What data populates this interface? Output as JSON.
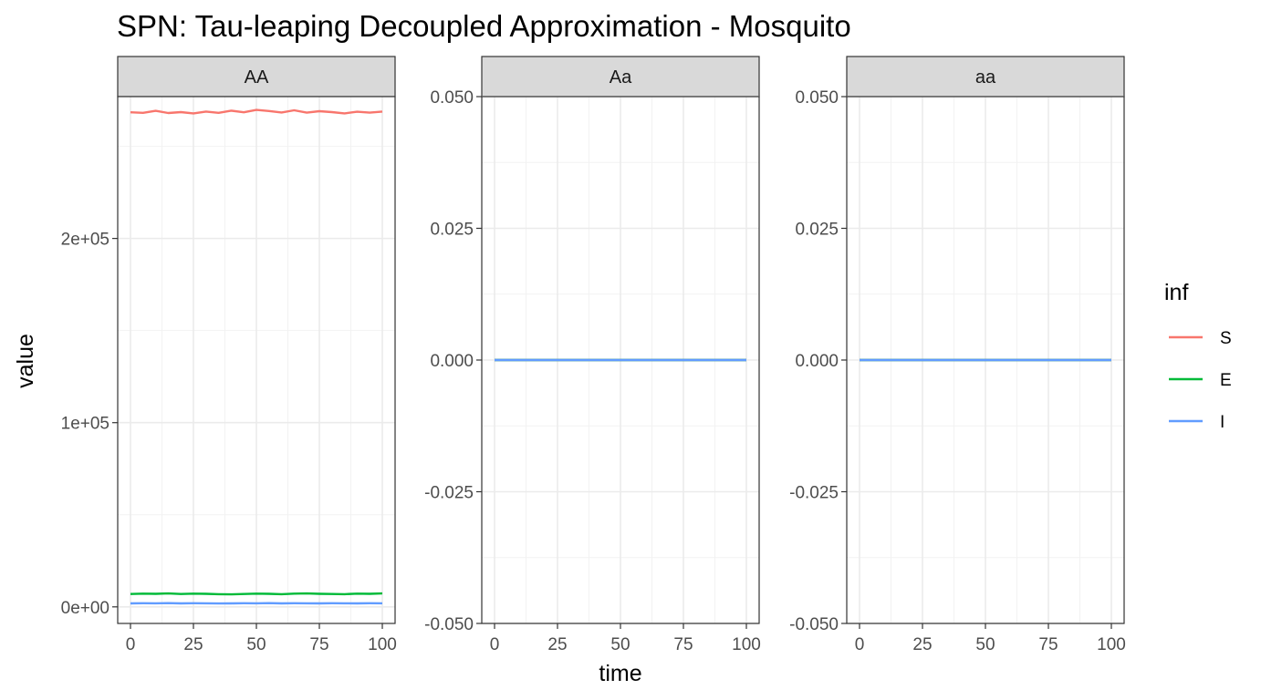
{
  "chart_data": {
    "type": "line",
    "title": "SPN: Tau-leaping Decoupled Approximation - Mosquito",
    "xlabel": "time",
    "ylabel": "value",
    "x_ticks": [
      "0",
      "25",
      "50",
      "75",
      "100"
    ],
    "xlim": [
      0,
      100
    ],
    "grid": true,
    "legend": {
      "title": "inf",
      "placement": "right",
      "entries": [
        {
          "label": "S",
          "color": "#F8766D"
        },
        {
          "label": "E",
          "color": "#00BA38"
        },
        {
          "label": "I",
          "color": "#619CFF"
        }
      ]
    },
    "panels": [
      {
        "strip": "AA",
        "ylim": [
          -9000,
          277000
        ],
        "y_ticks": [
          {
            "value": 0,
            "label": "0e+00"
          },
          {
            "value": 100000,
            "label": "1e+05"
          },
          {
            "value": 200000,
            "label": "2e+05"
          }
        ],
        "series": [
          {
            "name": "S",
            "color": "#F8766D",
            "x": [
              0,
              5,
              10,
              15,
              20,
              25,
              30,
              35,
              40,
              45,
              50,
              55,
              60,
              65,
              70,
              75,
              80,
              85,
              90,
              95,
              100
            ],
            "y": [
              268500,
              268200,
              269300,
              268100,
              268600,
              267900,
              268900,
              268200,
              269400,
              268500,
              269800,
              269200,
              268400,
              269600,
              268300,
              269100,
              268600,
              267900,
              268800,
              268300,
              268900
            ]
          },
          {
            "name": "E",
            "color": "#00BA38",
            "x": [
              0,
              5,
              10,
              15,
              20,
              25,
              30,
              35,
              40,
              45,
              50,
              55,
              60,
              65,
              70,
              75,
              80,
              85,
              90,
              95,
              100
            ],
            "y": [
              7000,
              7200,
              7100,
              7300,
              7000,
              7200,
              7100,
              6900,
              6800,
              7000,
              7200,
              7100,
              6900,
              7200,
              7300,
              7100,
              7000,
              6900,
              7200,
              7100,
              7300
            ]
          },
          {
            "name": "I",
            "color": "#619CFF",
            "x": [
              0,
              5,
              10,
              15,
              20,
              25,
              30,
              35,
              40,
              45,
              50,
              55,
              60,
              65,
              70,
              75,
              80,
              85,
              90,
              95,
              100
            ],
            "y": [
              1900,
              2000,
              1950,
              2050,
              1900,
              2000,
              1950,
              1850,
              1900,
              2000,
              1950,
              2050,
              1900,
              2000,
              1950,
              1900,
              2000,
              1950,
              1900,
              2000,
              1950
            ]
          }
        ]
      },
      {
        "strip": "Aa",
        "ylim": [
          -0.05,
          0.05
        ],
        "y_ticks": [
          {
            "value": -0.05,
            "label": "-0.050"
          },
          {
            "value": -0.025,
            "label": "-0.025"
          },
          {
            "value": 0,
            "label": "0.000"
          },
          {
            "value": 0.025,
            "label": "0.025"
          },
          {
            "value": 0.05,
            "label": "0.050"
          }
        ],
        "series": [
          {
            "name": "S",
            "color": "#F8766D",
            "x": [
              0,
              100
            ],
            "y": [
              0,
              0
            ]
          },
          {
            "name": "E",
            "color": "#00BA38",
            "x": [
              0,
              100
            ],
            "y": [
              0,
              0
            ]
          },
          {
            "name": "I",
            "color": "#619CFF",
            "x": [
              0,
              100
            ],
            "y": [
              0,
              0
            ]
          }
        ]
      },
      {
        "strip": "aa",
        "ylim": [
          -0.05,
          0.05
        ],
        "y_ticks": [
          {
            "value": -0.05,
            "label": "-0.050"
          },
          {
            "value": -0.025,
            "label": "-0.025"
          },
          {
            "value": 0,
            "label": "0.000"
          },
          {
            "value": 0.025,
            "label": "0.025"
          },
          {
            "value": 0.05,
            "label": "0.050"
          }
        ],
        "series": [
          {
            "name": "S",
            "color": "#F8766D",
            "x": [
              0,
              100
            ],
            "y": [
              0,
              0
            ]
          },
          {
            "name": "E",
            "color": "#00BA38",
            "x": [
              0,
              100
            ],
            "y": [
              0,
              0
            ]
          },
          {
            "name": "I",
            "color": "#619CFF",
            "x": [
              0,
              100
            ],
            "y": [
              0,
              0
            ]
          }
        ]
      }
    ]
  }
}
